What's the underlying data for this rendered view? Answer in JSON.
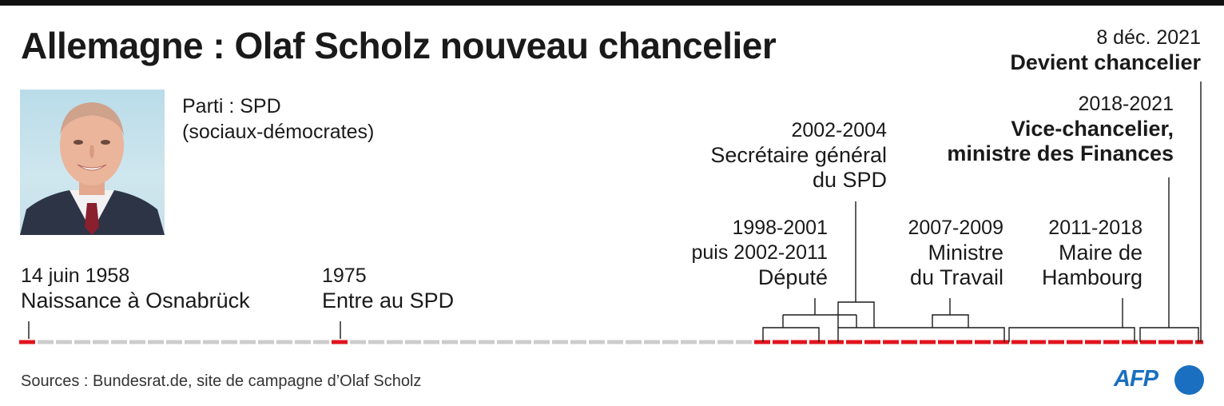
{
  "title": "Allemagne : Olaf Scholz nouveau chancelier",
  "party": {
    "line1": "Parti : SPD",
    "line2": "(sociaux-démocrates)"
  },
  "events": {
    "birth": {
      "date": "14 juin 1958",
      "label": "Naissance à Osnabrück"
    },
    "spd": {
      "date": "1975",
      "label": "Entre au SPD"
    },
    "depute": {
      "date1": "1998-2001",
      "date2": "puis 2002-2011",
      "label": "Député"
    },
    "secretaire": {
      "date": "2002-2004",
      "label1": "Secrétaire général",
      "label2": "du SPD"
    },
    "travail": {
      "date": "2007-2009",
      "label1": "Ministre",
      "label2": "du Travail"
    },
    "hambourg": {
      "date": "2011-2018",
      "label1": "Maire de",
      "label2": "Hambourg"
    },
    "vice": {
      "date": "2018-2021",
      "label1": "Vice-chancelier,",
      "label2": "ministre des Finances"
    },
    "chancelier": {
      "date": "8 déc. 2021",
      "label": "Devient chancelier"
    }
  },
  "footer": "Sources : Bundesrat.de, site de campagne d’Olaf Scholz",
  "logo": "AFP",
  "colors": {
    "accent": "#e1141e",
    "timeline": "#cccccc",
    "logo": "#1a6fc1"
  },
  "chart_data": {
    "type": "timeline",
    "x_range": [
      1958,
      2021
    ],
    "highlight": "red segments mark active periods",
    "markers": [
      {
        "year": 1958,
        "label": "Naissance à Osnabrück"
      },
      {
        "year": 1975,
        "label": "Entre au SPD"
      }
    ],
    "periods": [
      {
        "label": "Député",
        "start": 1998,
        "end": 2001
      },
      {
        "label": "Député",
        "start": 2002,
        "end": 2011
      },
      {
        "label": "Secrétaire général du SPD",
        "start": 2002,
        "end": 2004
      },
      {
        "label": "Ministre du Travail",
        "start": 2007,
        "end": 2009
      },
      {
        "label": "Maire de Hambourg",
        "start": 2011,
        "end": 2018
      },
      {
        "label": "Vice-chancelier, ministre des Finances",
        "start": 2018,
        "end": 2021
      },
      {
        "label": "Devient chancelier",
        "start": 2021,
        "end": 2021
      }
    ]
  }
}
